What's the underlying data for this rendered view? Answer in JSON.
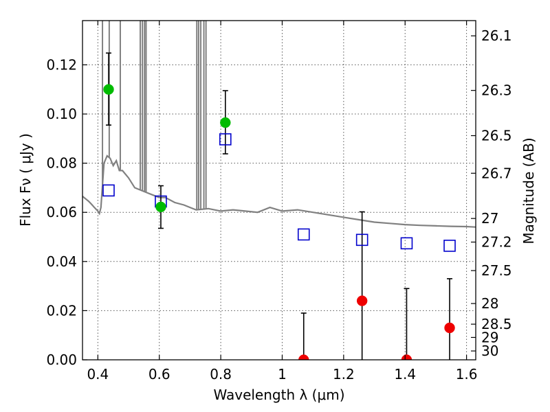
{
  "chart_data": {
    "type": "scatter",
    "xlabel": "Wavelength  λ (μm)",
    "ylabel": "Flux  Fν  ( μJy )",
    "y2label": "Magnitude (AB)",
    "xlim": [
      0.35,
      1.63
    ],
    "ylim": [
      0.0,
      0.138
    ],
    "grid": true,
    "x_ticks": [
      0.4,
      0.6,
      0.8,
      1.0,
      1.2,
      1.4,
      1.6
    ],
    "x_tick_labels": [
      "0.4",
      "0.6",
      "0.8",
      "1",
      "1.2",
      "1.4",
      "1.6"
    ],
    "y_ticks": [
      0.0,
      0.02,
      0.04,
      0.06,
      0.08,
      0.1,
      0.12
    ],
    "y_tick_labels": [
      "0.00",
      "0.02",
      "0.04",
      "0.06",
      "0.08",
      "0.10",
      "0.12"
    ],
    "y2_ticks": [
      {
        "label": "26.1",
        "flux": 0.1318
      },
      {
        "label": "26.3",
        "flux": 0.1096
      },
      {
        "label": "26.5",
        "flux": 0.0912
      },
      {
        "label": "26.7",
        "flux": 0.0759
      },
      {
        "label": "27",
        "flux": 0.0575
      },
      {
        "label": "27.2",
        "flux": 0.0479
      },
      {
        "label": "27.5",
        "flux": 0.0363
      },
      {
        "label": "28",
        "flux": 0.0229
      },
      {
        "label": "28.5",
        "flux": 0.0145
      },
      {
        "label": "29",
        "flux": 0.0091
      },
      {
        "label": "30",
        "flux": 0.0036
      }
    ],
    "colors": {
      "model_spectrum": "#808080",
      "model_photometry": "#0000cc",
      "detections": "#00bb00",
      "non_detections": "#ee0000",
      "grid": "#555555"
    },
    "series": [
      {
        "marker": "line",
        "x": [
          0.35,
          0.36,
          0.37,
          0.38,
          0.39,
          0.4,
          0.405,
          0.41,
          0.42,
          0.43,
          0.44,
          0.45,
          0.46,
          0.47,
          0.48,
          0.5,
          0.52,
          0.54,
          0.56,
          0.58,
          0.6,
          0.62,
          0.65,
          0.68,
          0.7,
          0.72,
          0.76,
          0.8,
          0.84,
          0.88,
          0.92,
          0.96,
          1.0,
          1.05,
          1.1,
          1.15,
          1.2,
          1.25,
          1.3,
          1.35,
          1.4,
          1.45,
          1.5,
          1.55,
          1.6,
          1.63
        ],
        "y": [
          0.0665,
          0.0655,
          0.0645,
          0.0632,
          0.0618,
          0.0605,
          0.0595,
          0.062,
          0.08,
          0.083,
          0.082,
          0.079,
          0.081,
          0.077,
          0.077,
          0.074,
          0.07,
          0.069,
          0.068,
          0.067,
          0.066,
          0.066,
          0.064,
          0.063,
          0.062,
          0.061,
          0.0615,
          0.0605,
          0.061,
          0.0605,
          0.06,
          0.062,
          0.0605,
          0.061,
          0.06,
          0.059,
          0.058,
          0.057,
          0.056,
          0.0555,
          0.055,
          0.0547,
          0.0545,
          0.0543,
          0.0542,
          0.054
        ]
      },
      {
        "marker": "open-square",
        "x": [
          0.435,
          0.605,
          0.815,
          1.07,
          1.26,
          1.405,
          1.545
        ],
        "y": [
          0.0689,
          0.0644,
          0.0897,
          0.051,
          0.0488,
          0.0474,
          0.0464
        ]
      },
      {
        "marker": "filled-circle",
        "x": [
          0.435,
          0.605,
          0.815
        ],
        "y": [
          0.11,
          0.0622,
          0.0965
        ],
        "yerr_low": [
          0.0955,
          0.0535,
          0.0838
        ],
        "yerr_high": [
          0.1248,
          0.0708,
          0.1095
        ]
      },
      {
        "marker": "filled-circle",
        "x": [
          1.07,
          1.26,
          1.405,
          1.545
        ],
        "y": [
          0.0,
          0.024,
          0.0,
          0.013
        ],
        "yerr_low": [
          0.0,
          0.0,
          0.0,
          0.0
        ],
        "yerr_high": [
          0.019,
          0.0602,
          0.029,
          0.033
        ]
      }
    ],
    "spectral_lines": [
      {
        "x": 0.415,
        "top": 0.138
      },
      {
        "x": 0.437,
        "top": 0.138
      },
      {
        "x": 0.473,
        "top": 0.138
      },
      {
        "x": 0.538,
        "top": 0.138
      },
      {
        "x": 0.545,
        "top": 0.138
      },
      {
        "x": 0.552,
        "top": 0.138
      },
      {
        "x": 0.557,
        "top": 0.138
      },
      {
        "x": 0.722,
        "top": 0.138
      },
      {
        "x": 0.728,
        "top": 0.138
      },
      {
        "x": 0.735,
        "top": 0.138
      },
      {
        "x": 0.745,
        "top": 0.138
      },
      {
        "x": 0.752,
        "top": 0.138
      }
    ]
  }
}
